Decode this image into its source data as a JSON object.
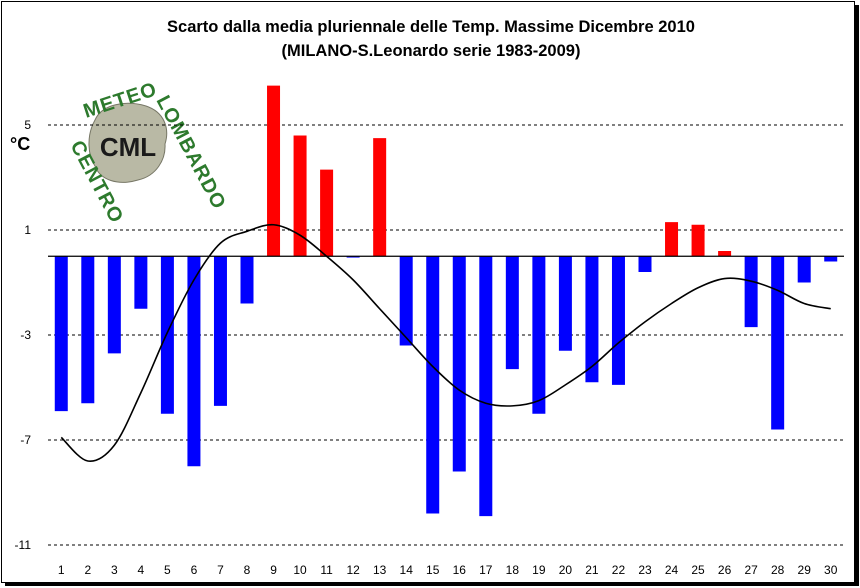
{
  "chart_data": {
    "type": "bar",
    "title": "Scarto dalla media pluriennale delle Temp. Massime Dicembre 2010",
    "subtitle": "(MILANO-S.Leonardo serie 1983-2009)",
    "ylabel": "°C",
    "xlabel": "",
    "ylim": [
      -11,
      7.5
    ],
    "yticks": [
      5,
      1,
      -3,
      -7,
      -11
    ],
    "grid": true,
    "categories": [
      "1",
      "2",
      "3",
      "4",
      "5",
      "6",
      "7",
      "8",
      "9",
      "10",
      "11",
      "12",
      "13",
      "14",
      "15",
      "16",
      "17",
      "18",
      "19",
      "20",
      "21",
      "22",
      "23",
      "24",
      "25",
      "26",
      "27",
      "28",
      "29",
      "30"
    ],
    "values": [
      -5.9,
      -5.6,
      -3.7,
      -2.0,
      -6.0,
      -8.0,
      -5.7,
      -1.8,
      6.5,
      4.6,
      3.3,
      -0.05,
      4.5,
      -3.4,
      -9.8,
      -8.2,
      -9.9,
      -4.3,
      -6.0,
      -3.6,
      -4.8,
      -4.9,
      -0.6,
      1.3,
      1.2,
      0.2,
      -2.7,
      -6.6,
      -1.0,
      -0.2
    ],
    "positive_color": "#ff0000",
    "negative_color": "#0000ff",
    "trend_line": [
      -6.9,
      -7.8,
      -7.2,
      -5.2,
      -2.9,
      -0.9,
      0.5,
      0.95,
      1.2,
      0.8,
      0.0,
      -0.9,
      -2.0,
      -3.1,
      -4.2,
      -5.1,
      -5.6,
      -5.7,
      -5.5,
      -4.9,
      -4.2,
      -3.3,
      -2.5,
      -1.8,
      -1.2,
      -0.85,
      -0.95,
      -1.3,
      -1.8,
      -2.0
    ],
    "trend_color": "#000000"
  },
  "logo": {
    "top_text": "METEO",
    "right_text": "LOMBARDO",
    "left_text": "CENTRO",
    "center_text": "CML"
  }
}
